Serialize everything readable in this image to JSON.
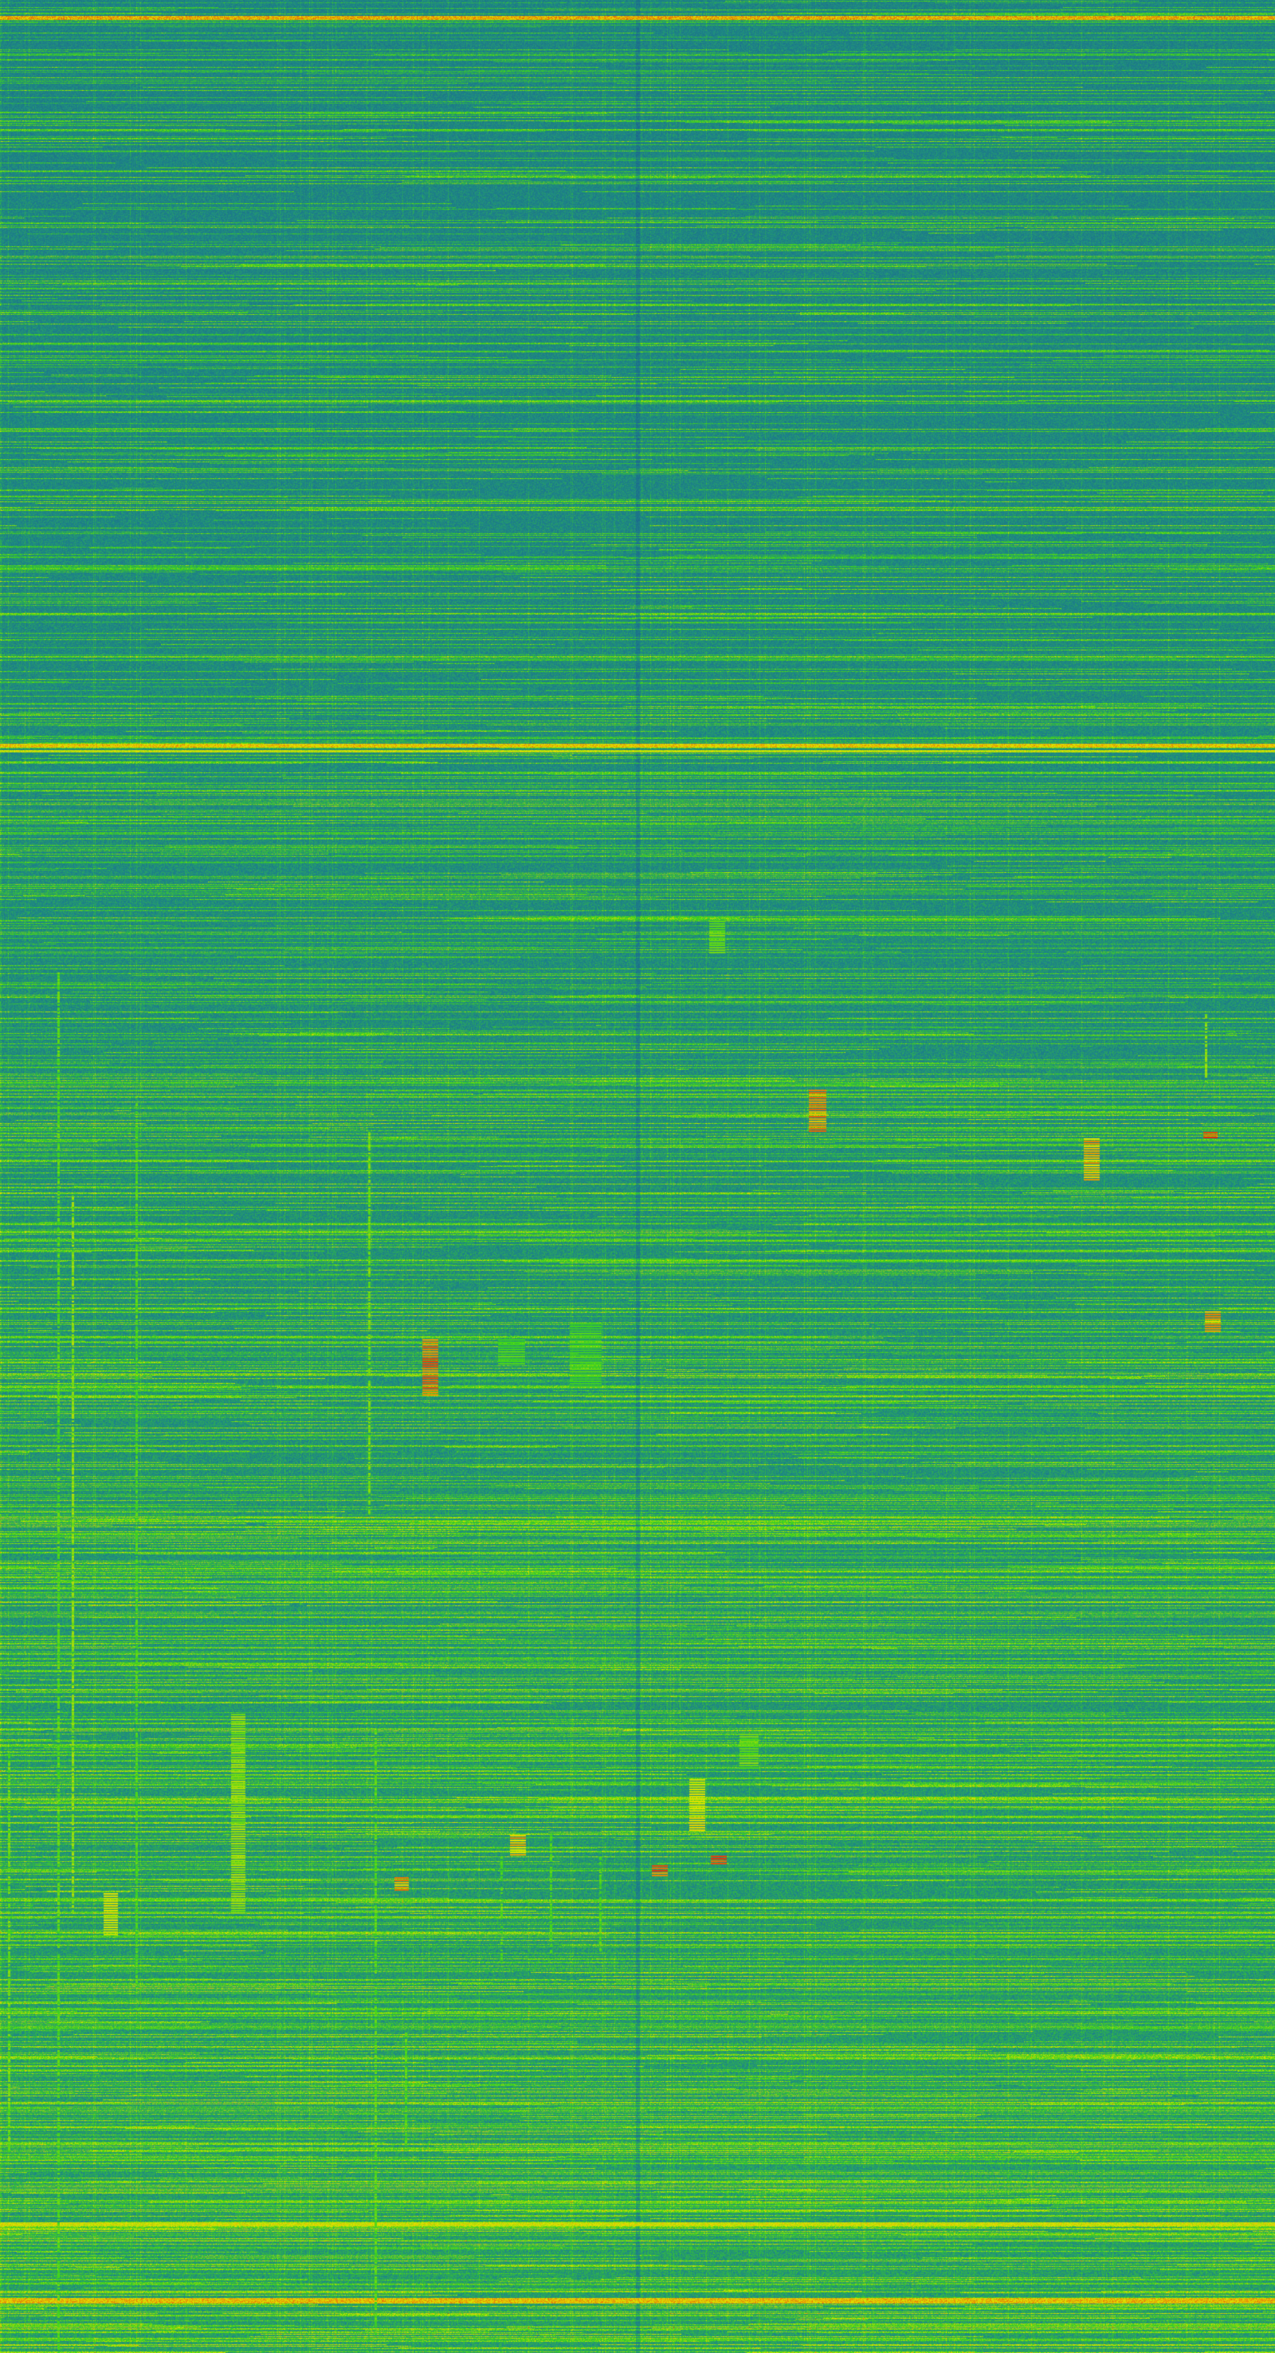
{
  "display": {
    "type": "waterfall-spectrogram",
    "colormap": {
      "low": "#1b5a92",
      "mid_low": "#1e8a84",
      "mid": "#3fd41c",
      "high": "#e4e200",
      "peak": "#e2200e"
    }
  }
}
